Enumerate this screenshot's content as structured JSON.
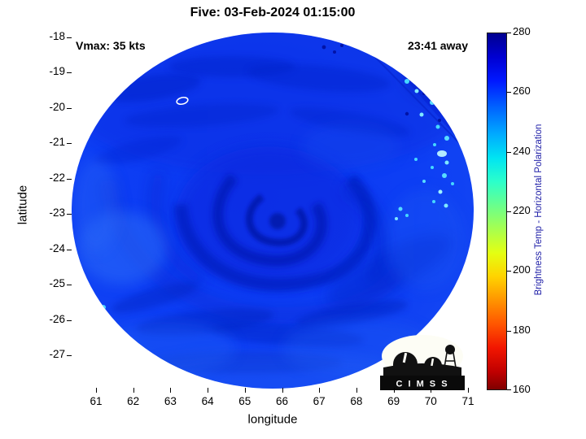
{
  "title": "Five: 03-Feb-2024 01:15:00",
  "annotations": {
    "vmax": "Vmax: 35 kts",
    "eta": "23:41 away"
  },
  "axes": {
    "xlabel": "longitude",
    "ylabel": "latitude",
    "x_ticks": [
      "61",
      "62",
      "63",
      "64",
      "65",
      "66",
      "67",
      "68",
      "69",
      "70",
      "71"
    ],
    "y_ticks": [
      "-18",
      "-19",
      "-20",
      "-21",
      "-22",
      "-23",
      "-24",
      "-25",
      "-26",
      "-27"
    ]
  },
  "colorbar": {
    "label": "Brightness Temp - Horizontal Polarization",
    "label_color": "#2020a8",
    "min": 160,
    "max": 280,
    "ticks": [
      280,
      260,
      240,
      220,
      200,
      180,
      160
    ],
    "stops": [
      {
        "value": 280,
        "color": "#00008f"
      },
      {
        "value": 272,
        "color": "#0000d2"
      },
      {
        "value": 264,
        "color": "#0018ff"
      },
      {
        "value": 255,
        "color": "#0063ff"
      },
      {
        "value": 246,
        "color": "#00aaff"
      },
      {
        "value": 238,
        "color": "#00e4f2"
      },
      {
        "value": 230,
        "color": "#2cffca"
      },
      {
        "value": 222,
        "color": "#69ff8d"
      },
      {
        "value": 214,
        "color": "#a7ff4f"
      },
      {
        "value": 206,
        "color": "#e4ff12"
      },
      {
        "value": 198,
        "color": "#ffd300"
      },
      {
        "value": 190,
        "color": "#ff9400"
      },
      {
        "value": 182,
        "color": "#ff5500"
      },
      {
        "value": 174,
        "color": "#f21600"
      },
      {
        "value": 166,
        "color": "#c00000"
      },
      {
        "value": 160,
        "color": "#800000"
      }
    ]
  },
  "logo": {
    "text": "C I M S S"
  },
  "chart_data": {
    "type": "heatmap",
    "title": "Five: 03-Feb-2024 01:15:00",
    "xlabel": "longitude",
    "ylabel": "latitude",
    "x_ticks": [
      61,
      62,
      63,
      64,
      65,
      66,
      67,
      68,
      69,
      70,
      71
    ],
    "y_ticks": [
      -18,
      -19,
      -20,
      -21,
      -22,
      -23,
      -24,
      -25,
      -26,
      -27
    ],
    "xlim": [
      60.3,
      71.3
    ],
    "ylim": [
      -27.9,
      -17.4
    ],
    "colorbar": {
      "label": "Brightness Temp - Horizontal Polarization",
      "range_K": [
        160,
        280
      ],
      "ticks": [
        160,
        180,
        200,
        220,
        240,
        260,
        280
      ],
      "colormap": "reversed jet: 280 K dark blue at top, 160 K dark red at bottom"
    },
    "annotations": [
      "Vmax: 35 kts",
      "23:41 away"
    ],
    "storm": {
      "name": "Five",
      "valid_time": "03-Feb-2024 01:15:00",
      "vmax_kts": 35,
      "obs_time_offset": "23:41 away",
      "center_lon_deg": 65.8,
      "center_lat_deg": -22.8
    },
    "swath": {
      "shape": "circular microwave swath disc",
      "center": {
        "lon": 65.7,
        "lat": -22.8
      },
      "radius_deg": 5.2,
      "dominant_temps_K": [
        252,
        272
      ],
      "features": [
        {
          "name": "cyclone spiral banding around center",
          "lon": 65.8,
          "lat": -22.8,
          "temp_K": 262
        },
        {
          "name": "cold convective cyan speckles",
          "lon_range": [
            68.8,
            70.3
          ],
          "lat_range": [
            -23.0,
            -19.0
          ],
          "temp_K": 240
        },
        {
          "name": "small white contour ring",
          "lon": 63.3,
          "lat": -19.7
        },
        {
          "name": "darker swath sector seam",
          "description": "diagonal edge in upper-right quadrant of disc"
        },
        {
          "name": "lighter blue patches",
          "lon_range": [
            61.0,
            63.0
          ],
          "lat_range": [
            -25.5,
            -23.5
          ],
          "temp_K": 255
        }
      ]
    },
    "source_logo": "CIMSS"
  }
}
